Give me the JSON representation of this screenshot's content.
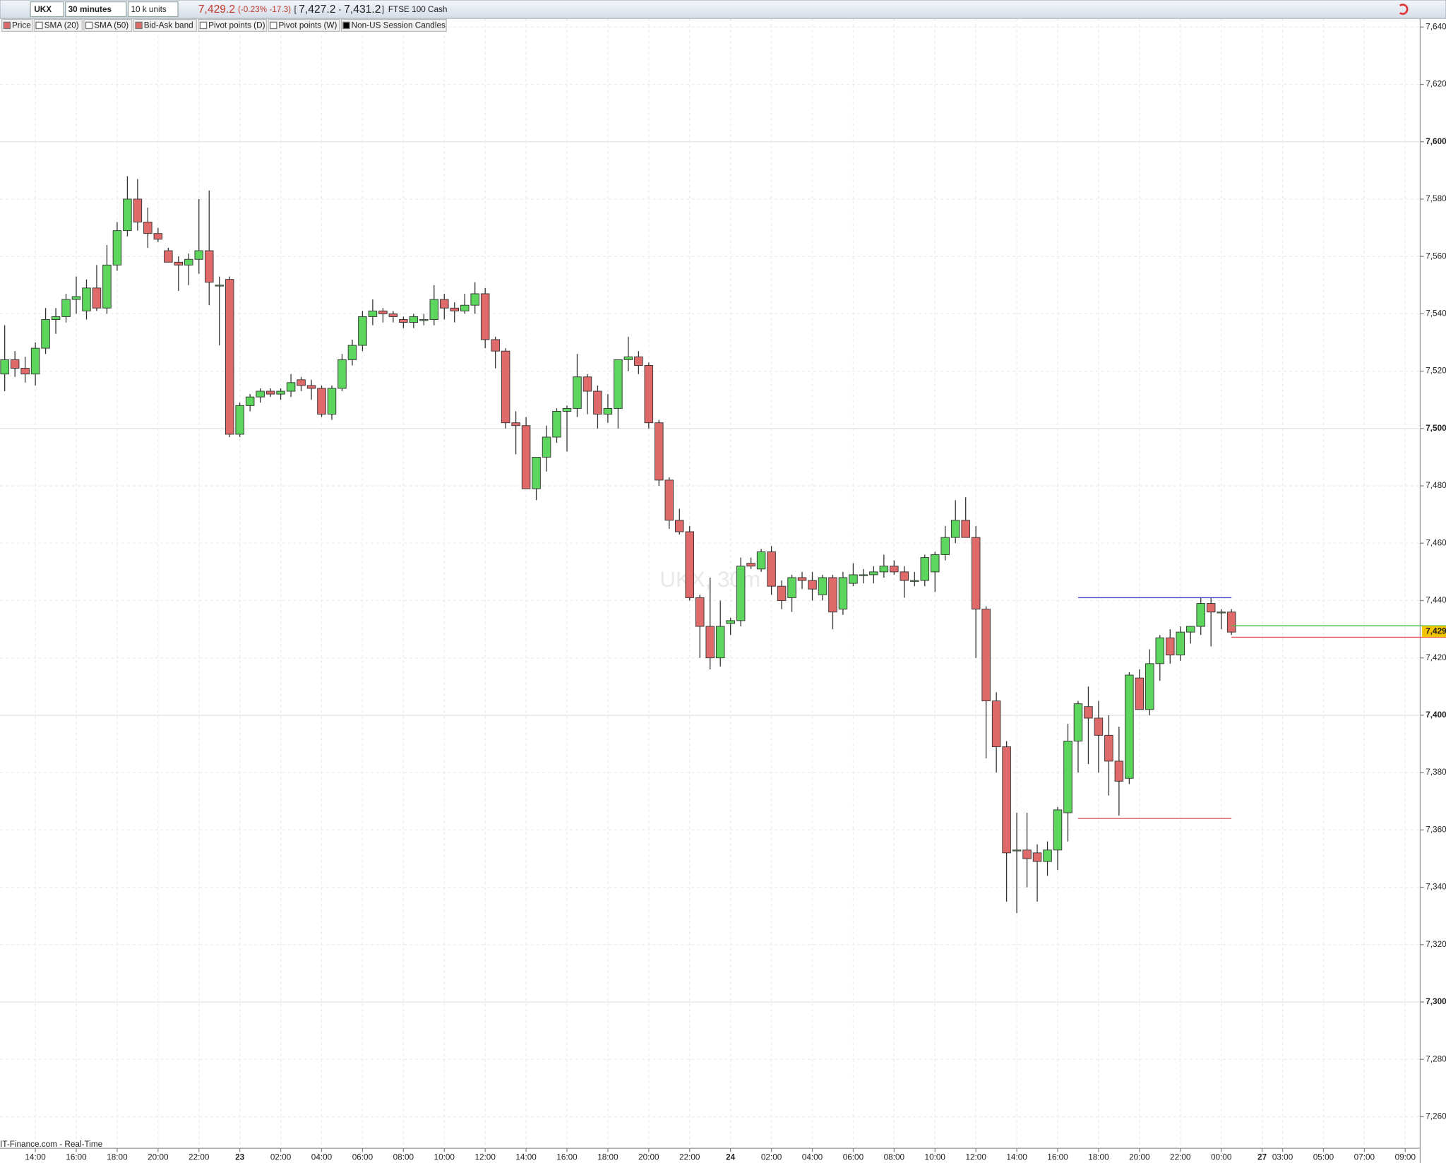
{
  "toolbar": {
    "symbol": "UKX",
    "interval": "30 minutes",
    "size": "10 k units",
    "last": "7,429.2",
    "change": "(-0.23% -17.3)",
    "open_bracket": "[",
    "bid": "7,427.2",
    "dash": "-",
    "ask": "7,431.2",
    "close_bracket": "]",
    "instrument": "FTSE 100 Cash"
  },
  "indicators": [
    "Price",
    "SMA (20)",
    "SMA (50)",
    "Bid-Ask band",
    "Pivot points (D)",
    "Pivot points (W)",
    "Non-US Session Candles"
  ],
  "source": "IT-Finance.com - Real-Time",
  "chart_data": {
    "type": "candlestick",
    "watermark": "UKX, 30m",
    "up_color": "#5cd65c",
    "down_color": "#e06a6a",
    "x": [
      12.5,
      13,
      13.5,
      14,
      14.5,
      15,
      15.5,
      16,
      16.5,
      17,
      17.5,
      18,
      18.5,
      19,
      19.5,
      20,
      20.5,
      21,
      21.5,
      22,
      22.5,
      23,
      23.5,
      24,
      24.5,
      25,
      25.5,
      26,
      26.5,
      27,
      27.5,
      28,
      28.5,
      29,
      29.5,
      30,
      30.5,
      31,
      31.5,
      32,
      32.5,
      33,
      33.5,
      34,
      34.5,
      35,
      35.5,
      36,
      36.5,
      37,
      37.5,
      38,
      38.5,
      39,
      39.5,
      40,
      40.5,
      41,
      41.5,
      42,
      42.5,
      43,
      43.5,
      44,
      44.5,
      45,
      45.5,
      46,
      46.5,
      47,
      47.5,
      48,
      48.5,
      49,
      49.5,
      50,
      50.5,
      51,
      51.5,
      52,
      52.5,
      53,
      53.5,
      54,
      54.5,
      55,
      55.5,
      56,
      56.5,
      57,
      57.5,
      58,
      58.5,
      59,
      59.5,
      60,
      60.5,
      61,
      61.5,
      62,
      62.5,
      63,
      63.5,
      64,
      64.5,
      65,
      65.5,
      66,
      66.5,
      67,
      67.5,
      68,
      68.5,
      69,
      69.5,
      70,
      70.5,
      71,
      71.5,
      72,
      72.5
    ],
    "open": [
      7519,
      7524,
      7521,
      7519,
      7528,
      7538,
      7539,
      7545,
      7541,
      7549,
      7542,
      7557,
      7569,
      7580,
      7572,
      7568,
      7562,
      7558,
      7557,
      7559,
      7562,
      7550,
      7552,
      7498,
      7508,
      7511,
      7513,
      7512,
      7513,
      7517,
      7515,
      7514,
      7505,
      7514,
      7524,
      7529,
      7539,
      7541,
      7540,
      7538,
      7537,
      7538,
      7538,
      7545,
      7542,
      7541,
      7543,
      7547,
      7531,
      7527,
      7502,
      7501,
      7479,
      7490,
      7497,
      7506,
      7507,
      7518,
      7513,
      7505,
      7507,
      7524,
      7525,
      7522,
      7502,
      7482,
      7468,
      7464,
      7441,
      7431,
      7420,
      7432,
      7433,
      7453,
      7451,
      7457,
      7445,
      7441,
      7448,
      7447,
      7442,
      7448,
      7437,
      7446,
      7449,
      7449,
      7450,
      7452,
      7450,
      7447,
      7447,
      7450,
      7456,
      7462,
      7468,
      7462,
      7437,
      7405,
      7389,
      7353,
      7353,
      7352,
      7349,
      7353,
      7366,
      7391,
      7403,
      7399,
      7393,
      7384,
      7378,
      7413,
      7402,
      7418,
      7427,
      7421,
      7429,
      7431,
      7439,
      7436,
      7436
    ],
    "high": [
      7536,
      7527,
      7525,
      7530,
      7542,
      7542,
      7547,
      7553,
      7552,
      7557,
      7564,
      7572,
      7588,
      7587,
      7577,
      7570,
      7563,
      7560,
      7561,
      7580,
      7583,
      7553,
      7553,
      7509,
      7512,
      7514,
      7514,
      7514,
      7519,
      7518,
      7517,
      7515,
      7515,
      7526,
      7531,
      7541,
      7545,
      7542,
      7541,
      7539,
      7540,
      7540,
      7550,
      7547,
      7544,
      7547,
      7551,
      7549,
      7532,
      7528,
      7506,
      7504,
      7488,
      7501,
      7507,
      7508,
      7526,
      7519,
      7515,
      7512,
      7524,
      7532,
      7527,
      7523,
      7503,
      7483,
      7472,
      7466,
      7442,
      7448,
      7440,
      7434,
      7455,
      7455,
      7458,
      7459,
      7447,
      7449,
      7450,
      7450,
      7449,
      7449,
      7450,
      7453,
      7451,
      7452,
      7456,
      7454,
      7452,
      7450,
      7456,
      7457,
      7466,
      7475,
      7476,
      7466,
      7438,
      7408,
      7391,
      7366,
      7366,
      7355,
      7356,
      7368,
      7397,
      7405,
      7410,
      7405,
      7400,
      7396,
      7415,
      7416,
      7423,
      7428,
      7430,
      7431,
      7431,
      7441,
      7441,
      7437,
      7437
    ],
    "low": [
      7513,
      7518,
      7516,
      7515,
      7526,
      7533,
      7537,
      7540,
      7538,
      7541,
      7540,
      7555,
      7567,
      7569,
      7563,
      7565,
      7558,
      7548,
      7550,
      7554,
      7543,
      7529,
      7497,
      7497,
      7506,
      7509,
      7511,
      7510,
      7511,
      7513,
      7510,
      7504,
      7503,
      7513,
      7522,
      7527,
      7536,
      7537,
      7537,
      7535,
      7535,
      7536,
      7536,
      7538,
      7537,
      7540,
      7540,
      7528,
      7521,
      7500,
      7491,
      7479,
      7475,
      7485,
      7495,
      7492,
      7504,
      7505,
      7500,
      7502,
      7500,
      7520,
      7519,
      7500,
      7480,
      7465,
      7463,
      7440,
      7420,
      7416,
      7417,
      7428,
      7431,
      7451,
      7450,
      7442,
      7437,
      7436,
      7444,
      7440,
      7440,
      7430,
      7435,
      7445,
      7446,
      7446,
      7448,
      7449,
      7441,
      7445,
      7445,
      7443,
      7454,
      7460,
      7462,
      7420,
      7385,
      7380,
      7335,
      7331,
      7340,
      7335,
      7344,
      7346,
      7356,
      7380,
      7383,
      7380,
      7372,
      7365,
      7376,
      7402,
      7400,
      7412,
      7418,
      7419,
      7425,
      7428,
      7424,
      7430,
      7428
    ],
    "close": [
      7524,
      7521,
      7519,
      7528,
      7538,
      7539,
      7545,
      7546,
      7549,
      7542,
      7557,
      7569,
      7580,
      7572,
      7568,
      7566,
      7558,
      7557,
      7559,
      7562,
      7551,
      7550,
      7498,
      7508,
      7511,
      7513,
      7512,
      7513,
      7516,
      7515,
      7514,
      7505,
      7514,
      7524,
      7529,
      7539,
      7541,
      7540,
      7539,
      7537,
      7539,
      7538,
      7545,
      7542,
      7541,
      7543,
      7547,
      7531,
      7527,
      7502,
      7501,
      7479,
      7490,
      7497,
      7506,
      7507,
      7518,
      7513,
      7505,
      7507,
      7524,
      7525,
      7522,
      7502,
      7482,
      7468,
      7464,
      7441,
      7431,
      7420,
      7431,
      7433,
      7452,
      7452,
      7457,
      7445,
      7440,
      7448,
      7447,
      7444,
      7448,
      7436,
      7448,
      7449,
      7449,
      7450,
      7452,
      7450,
      7447,
      7447,
      7455,
      7456,
      7462,
      7468,
      7462,
      7437,
      7405,
      7389,
      7352,
      7353,
      7350,
      7349,
      7353,
      7367,
      7391,
      7404,
      7399,
      7393,
      7384,
      7377,
      7414,
      7402,
      7418,
      7427,
      7421,
      7429,
      7431,
      7439,
      7436,
      7436,
      7429
    ],
    "levels": [
      {
        "value": 7441,
        "color": "#4444c8",
        "x": [
          65,
          72.5
        ]
      },
      {
        "value": 7364,
        "color": "#d84848",
        "x": [
          65,
          72.5
        ]
      }
    ],
    "bid_ask": [
      {
        "value": 7431.2,
        "color": "#44bb44"
      },
      {
        "value": 7427.2,
        "color": "#dd5555"
      }
    ],
    "last_price": {
      "value": 7429.2,
      "label": "7,429"
    },
    "xlim": [
      12.27,
      81.73
    ],
    "ylim": [
      7249,
      7643
    ],
    "yticks": [
      {
        "value": 7260,
        "label": "7,260"
      },
      {
        "value": 7280,
        "label": "7,280"
      },
      {
        "value": 7300,
        "label": "7,300"
      },
      {
        "value": 7320,
        "label": "7,320"
      },
      {
        "value": 7340,
        "label": "7,340"
      },
      {
        "value": 7360,
        "label": "7,360"
      },
      {
        "value": 7380,
        "label": "7,380"
      },
      {
        "value": 7400,
        "label": "7,400"
      },
      {
        "value": 7420,
        "label": "7,420"
      },
      {
        "value": 7440,
        "label": "7,440"
      },
      {
        "value": 7460,
        "label": "7,460"
      },
      {
        "value": 7480,
        "label": "7,480"
      },
      {
        "value": 7500,
        "label": "7,500"
      },
      {
        "value": 7520,
        "label": "7,520"
      },
      {
        "value": 7540,
        "label": "7,540"
      },
      {
        "value": 7560,
        "label": "7,560"
      },
      {
        "value": 7580,
        "label": "7,580"
      },
      {
        "value": 7600,
        "label": "7,600"
      },
      {
        "value": 7620,
        "label": "7,620"
      },
      {
        "value": 7640,
        "label": "7,640"
      }
    ],
    "xticks": [
      {
        "value": 14,
        "label": "14:00"
      },
      {
        "value": 16,
        "label": "16:00"
      },
      {
        "value": 18,
        "label": "18:00"
      },
      {
        "value": 20,
        "label": "20:00"
      },
      {
        "value": 22,
        "label": "22:00"
      },
      {
        "value": 24,
        "label": "23"
      },
      {
        "value": 26,
        "label": "02:00"
      },
      {
        "value": 28,
        "label": "04:00"
      },
      {
        "value": 30,
        "label": "06:00"
      },
      {
        "value": 32,
        "label": "08:00"
      },
      {
        "value": 34,
        "label": "10:00"
      },
      {
        "value": 36,
        "label": "12:00"
      },
      {
        "value": 38,
        "label": "14:00"
      },
      {
        "value": 40,
        "label": "16:00"
      },
      {
        "value": 42,
        "label": "18:00"
      },
      {
        "value": 44,
        "label": "20:00"
      },
      {
        "value": 46,
        "label": "22:00"
      },
      {
        "value": 48,
        "label": "24"
      },
      {
        "value": 50,
        "label": "02:00"
      },
      {
        "value": 52,
        "label": "04:00"
      },
      {
        "value": 54,
        "label": "06:00"
      },
      {
        "value": 56,
        "label": "08:00"
      },
      {
        "value": 58,
        "label": "10:00"
      },
      {
        "value": 60,
        "label": "12:00"
      },
      {
        "value": 62,
        "label": "14:00"
      },
      {
        "value": 64,
        "label": "16:00"
      },
      {
        "value": 66,
        "label": "18:00"
      },
      {
        "value": 68,
        "label": "20:00"
      },
      {
        "value": 70,
        "label": "22:00"
      },
      {
        "value": 72,
        "label": "00:00"
      },
      {
        "value": 74,
        "label": "27"
      },
      {
        "value": 75,
        "label": "03:00"
      },
      {
        "value": 77,
        "label": "05:00"
      },
      {
        "value": 79,
        "label": "07:00"
      },
      {
        "value": 81,
        "label": "09:00"
      }
    ],
    "grid": true
  }
}
